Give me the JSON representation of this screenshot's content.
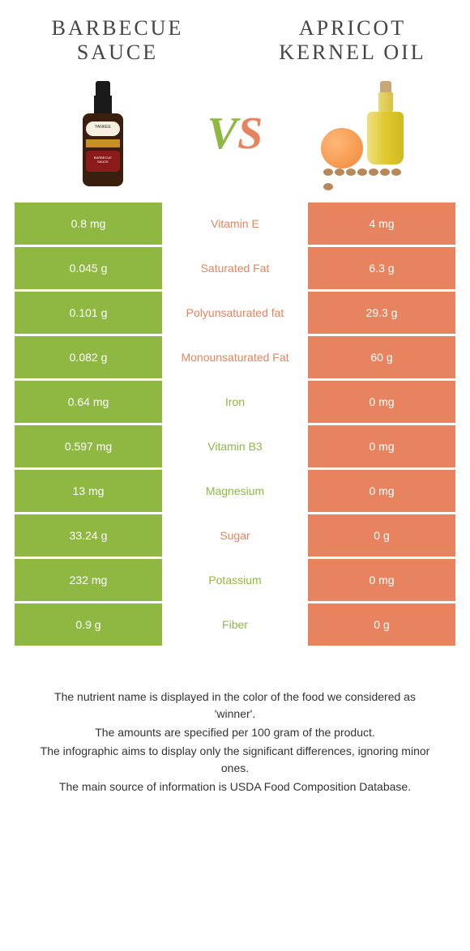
{
  "header": {
    "left_title": "Barbecue sauce",
    "right_title": "Apricot kernel oil",
    "vs_v": "V",
    "vs_s": "S"
  },
  "colors": {
    "green": "#8fb843",
    "coral": "#e8835f",
    "white": "#ffffff"
  },
  "rows": [
    {
      "left": "0.8 mg",
      "label": "Vitamin E",
      "right": "4 mg",
      "winner": "right"
    },
    {
      "left": "0.045 g",
      "label": "Saturated Fat",
      "right": "6.3 g",
      "winner": "right"
    },
    {
      "left": "0.101 g",
      "label": "Polyunsaturated fat",
      "right": "29.3 g",
      "winner": "right"
    },
    {
      "left": "0.082 g",
      "label": "Monounsaturated Fat",
      "right": "60 g",
      "winner": "right"
    },
    {
      "left": "0.64 mg",
      "label": "Iron",
      "right": "0 mg",
      "winner": "left"
    },
    {
      "left": "0.597 mg",
      "label": "Vitamin B3",
      "right": "0 mg",
      "winner": "left"
    },
    {
      "left": "13 mg",
      "label": "Magnesium",
      "right": "0 mg",
      "winner": "left"
    },
    {
      "left": "33.24 g",
      "label": "Sugar",
      "right": "0 g",
      "winner": "right"
    },
    {
      "left": "232 mg",
      "label": "Potassium",
      "right": "0 mg",
      "winner": "left"
    },
    {
      "left": "0.9 g",
      "label": "Fiber",
      "right": "0 g",
      "winner": "left"
    }
  ],
  "footnotes": [
    "The nutrient name is displayed in the color of the food we considered as 'winner'.",
    "The amounts are specified per 100 gram of the product.",
    "The infographic aims to display only the significant differences, ignoring minor ones.",
    "The main source of information is USDA Food Composition Database."
  ]
}
